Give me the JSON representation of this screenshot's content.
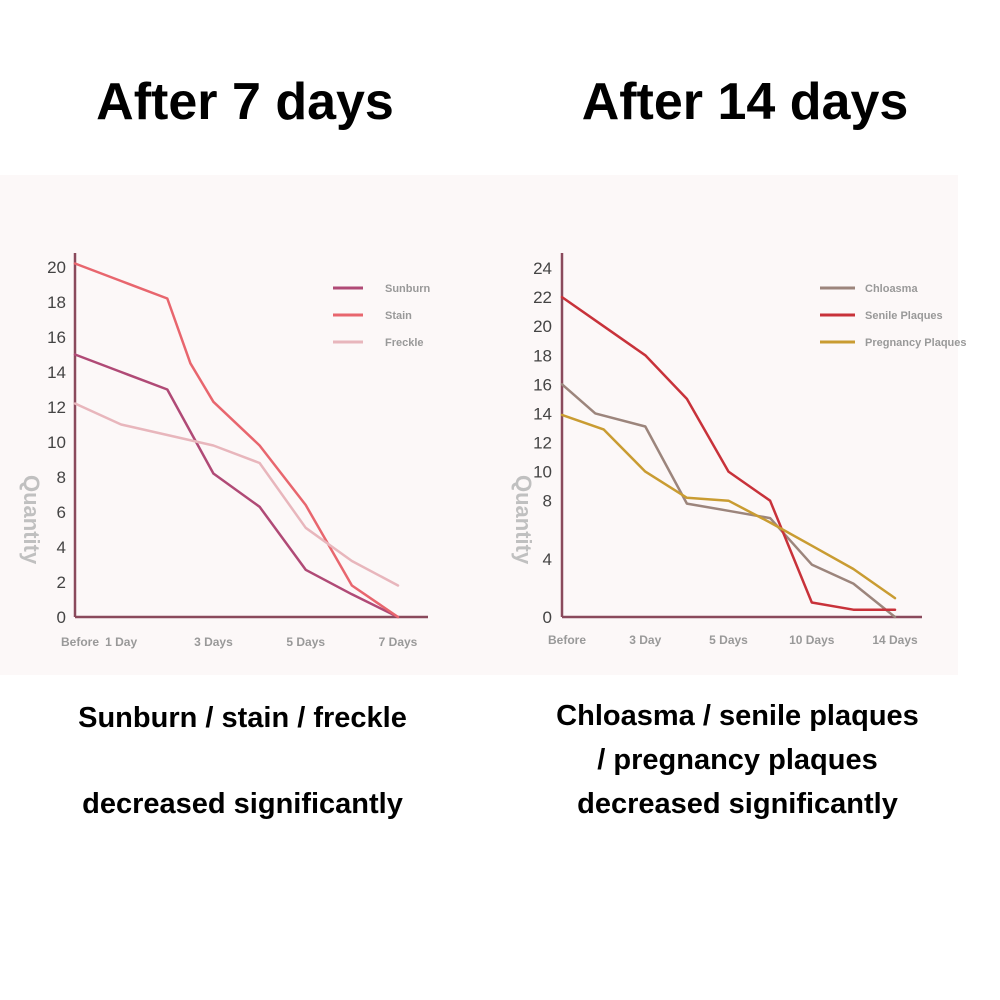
{
  "headings": {
    "left": "After 7 days",
    "right": "After 14 days"
  },
  "captions": {
    "left": [
      "Sunburn / stain / freckle",
      "decreased significantly"
    ],
    "right": [
      "Chloasma  / senile plaques",
      "/ pregnancy plaques",
      "decreased significantly"
    ]
  },
  "colors": {
    "background": "#ffffff",
    "chart_background": "#fcf8f8",
    "axis": "#8a4a5c",
    "tick_text": "#444444",
    "category_text": "#999999",
    "ylabel_text": "#c0c0c0"
  },
  "chart_data": [
    {
      "type": "line",
      "title": "",
      "ylabel": "Quantity",
      "xlabel": "",
      "ylim": [
        0,
        20
      ],
      "y_ticks": [
        0,
        2,
        4,
        6,
        8,
        10,
        12,
        14,
        16,
        18,
        20
      ],
      "x_ticks": [
        {
          "label": "Before",
          "x": 0
        },
        {
          "label": "1 Day",
          "x": 1
        },
        {
          "label": "3 Days",
          "x": 3
        },
        {
          "label": "5 Days",
          "x": 5
        },
        {
          "label": "7 Days",
          "x": 7
        }
      ],
      "xlim": [
        0,
        7
      ],
      "legend_position": "top-right",
      "series": [
        {
          "name": "Sunburn",
          "color": "#b04a76",
          "x": [
            0,
            1,
            2,
            3,
            4,
            5,
            6,
            7
          ],
          "values": [
            15,
            14,
            13,
            8.2,
            6.3,
            2.7,
            1.3,
            0
          ]
        },
        {
          "name": "Stain",
          "color": "#e8666e",
          "x": [
            0,
            1,
            2,
            2.5,
            3,
            4,
            5,
            6,
            7
          ],
          "values": [
            20.2,
            19.2,
            18.2,
            14.5,
            12.3,
            9.8,
            6.4,
            1.8,
            0
          ]
        },
        {
          "name": "Freckle",
          "color": "#e8b6bc",
          "x": [
            0,
            1,
            2,
            3,
            4,
            5,
            6,
            7
          ],
          "values": [
            12.2,
            11,
            10.4,
            9.8,
            8.8,
            5.1,
            3.2,
            1.8
          ]
        }
      ]
    },
    {
      "type": "line",
      "title": "",
      "ylabel": "Quantity",
      "xlabel": "",
      "ylim": [
        0,
        24
      ],
      "y_ticks": [
        0,
        4,
        8,
        10,
        12,
        14,
        16,
        18,
        20,
        22,
        24
      ],
      "x_ticks": [
        {
          "label": "Before",
          "x": 0
        },
        {
          "label": "3 Day",
          "x": 1
        },
        {
          "label": "5 Days",
          "x": 2
        },
        {
          "label": "10 Days",
          "x": 3
        },
        {
          "label": "14 Days",
          "x": 4
        }
      ],
      "xlim": [
        0,
        4
      ],
      "legend_position": "top-right",
      "series": [
        {
          "name": "Chloasma",
          "color": "#9c857c",
          "x": [
            0,
            0.4,
            1,
            1.5,
            2,
            2.5,
            3,
            3.5,
            4
          ],
          "values": [
            16,
            14,
            13.1,
            7.8,
            7.3,
            6.8,
            3.6,
            2.3,
            0
          ]
        },
        {
          "name": "Senile Plaques",
          "color": "#c8323a",
          "x": [
            0,
            0.5,
            1,
            1.5,
            2,
            2.5,
            3,
            3.5,
            4
          ],
          "values": [
            22,
            20,
            18,
            15,
            10,
            8,
            1,
            0.5,
            0.5
          ]
        },
        {
          "name": "Pregnancy Plaques",
          "color": "#c99c32",
          "x": [
            0,
            0.5,
            1,
            1.5,
            2,
            2.5,
            3,
            3.5,
            4
          ],
          "values": [
            13.9,
            12.9,
            10,
            8.2,
            8,
            6.5,
            4.9,
            3.3,
            1.3
          ]
        }
      ]
    }
  ]
}
